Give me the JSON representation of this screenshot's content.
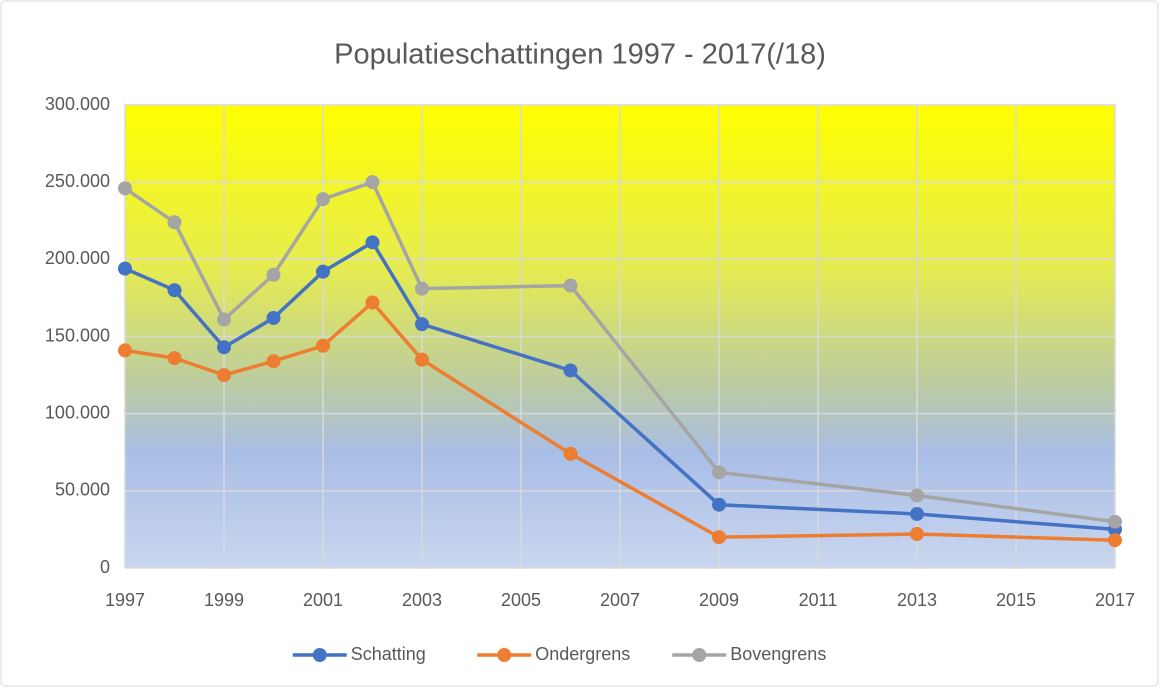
{
  "chart_data": {
    "type": "line",
    "title": "Populatieschattingen 1997 - 2017(/18)",
    "x": [
      1997,
      1998,
      1999,
      2000,
      2001,
      2002,
      2003,
      2006,
      2009,
      2013,
      2017
    ],
    "series": [
      {
        "name": "Schatting",
        "color": "#4472c4",
        "values": [
          194000,
          180000,
          143000,
          162000,
          192000,
          211000,
          158000,
          128000,
          41000,
          35000,
          25000
        ]
      },
      {
        "name": "Ondergrens",
        "color": "#ed7d31",
        "values": [
          141000,
          136000,
          125000,
          134000,
          144000,
          172000,
          135000,
          74000,
          20000,
          22000,
          18000
        ]
      },
      {
        "name": "Bovengrens",
        "color": "#a5a5a5",
        "values": [
          246000,
          224000,
          161000,
          190000,
          239000,
          250000,
          181000,
          183000,
          62000,
          47000,
          30000
        ]
      }
    ],
    "xlim": [
      1997,
      2017
    ],
    "xticks": [
      1997,
      1999,
      2001,
      2003,
      2005,
      2007,
      2009,
      2011,
      2013,
      2015,
      2017
    ],
    "ylim": [
      0,
      300000
    ],
    "yticks": [
      0,
      {
        "value": 50000,
        "label": "50.000"
      },
      {
        "value": 100000,
        "label": "100.000"
      },
      {
        "value": 150000,
        "label": "150.000"
      },
      {
        "value": 200000,
        "label": "200.000"
      },
      {
        "value": 250000,
        "label": "250.000"
      },
      {
        "value": 300000,
        "label": "300.000"
      }
    ],
    "grid": true,
    "legend": "bottom"
  }
}
